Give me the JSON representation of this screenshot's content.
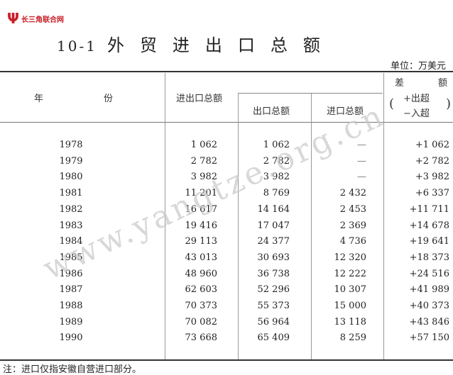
{
  "logo": {
    "mark": "Ψ",
    "name": "长三角联合网"
  },
  "title": {
    "number": "10-1",
    "text": "外贸进出口总额"
  },
  "unit": "单位：万美元",
  "headers": {
    "year": [
      "年",
      "份"
    ],
    "total": "进出口总额",
    "export": "出口总额",
    "import": "进口总额",
    "balance_top": [
      "差",
      "额"
    ],
    "balance_plus": "+出超",
    "balance_minus": "−入超"
  },
  "rows": [
    {
      "year": "1978",
      "total": "1 062",
      "export": "1 062",
      "import": "—",
      "balance": "+1 062"
    },
    {
      "year": "1979",
      "total": "2 782",
      "export": "2 782",
      "import": "—",
      "balance": "+2 782"
    },
    {
      "year": "1980",
      "total": "3 982",
      "export": "3 982",
      "import": "—",
      "balance": "+3 982"
    },
    {
      "year": "1981",
      "total": "11 201",
      "export": "8 769",
      "import": "2 432",
      "balance": "+6 337"
    },
    {
      "year": "1982",
      "total": "16 617",
      "export": "14 164",
      "import": "2 453",
      "balance": "+11 711"
    },
    {
      "year": "1983",
      "total": "19 416",
      "export": "17 047",
      "import": "2 369",
      "balance": "+14 678"
    },
    {
      "year": "1984",
      "total": "29 113",
      "export": "24 377",
      "import": "4 736",
      "balance": "+19 641"
    },
    {
      "year": "1985",
      "total": "43 013",
      "export": "30 693",
      "import": "12 320",
      "balance": "+18 373"
    },
    {
      "year": "1986",
      "total": "48 960",
      "export": "36 738",
      "import": "12 222",
      "balance": "+24 516"
    },
    {
      "year": "1987",
      "total": "62 603",
      "export": "52 296",
      "import": "10 307",
      "balance": "+41 989"
    },
    {
      "year": "1988",
      "total": "70 373",
      "export": "55 373",
      "import": "15 000",
      "balance": "+40 373"
    },
    {
      "year": "1989",
      "total": "70 082",
      "export": "56 964",
      "import": "13 118",
      "balance": "+43 846"
    },
    {
      "year": "1990",
      "total": "73 668",
      "export": "65 409",
      "import": "8 259",
      "balance": "+57 150"
    }
  ],
  "note": "注：进口仅指安徽自营进口部分。",
  "watermark": "www.yangtze.org.cn",
  "colors": {
    "logo": "#c8202a",
    "watermark": "#c8c8c8"
  }
}
